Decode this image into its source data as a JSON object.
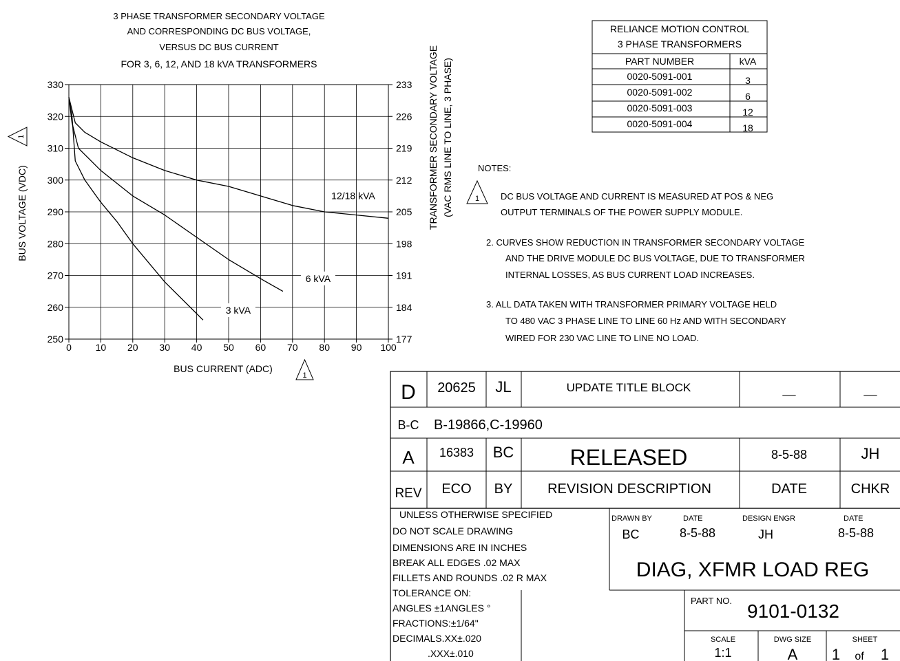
{
  "chart_data": {
    "type": "line",
    "title": [
      "3 PHASE TRANSFORMER SECONDARY VOLTAGE",
      "AND CORRESPONDING DC BUS VOLTAGE,",
      "VERSUS DC BUS CURRENT",
      "FOR 3, 6, 12, AND 18 kVA TRANSFORMERS"
    ],
    "xlabel": "BUS CURRENT (ADC)",
    "ylabel": "BUS VOLTAGE (VDC)",
    "y2label": [
      "TRANSFORMER SECONDARY VOLTAGE",
      "(VAC RMS LINE TO LINE, 3 PHASE)"
    ],
    "xlim": [
      0,
      100
    ],
    "ylim": [
      250,
      330
    ],
    "x_ticks": [
      "0",
      "10",
      "20",
      "30",
      "40",
      "50",
      "60",
      "70",
      "80",
      "90",
      "100"
    ],
    "y_ticks": [
      "250",
      "260",
      "270",
      "280",
      "290",
      "300",
      "310",
      "320",
      "330"
    ],
    "y2_ticks": [
      "177",
      "184",
      "191",
      "198",
      "205",
      "212",
      "219",
      "226",
      "233"
    ],
    "grid": true,
    "note_marker": "1",
    "series": [
      {
        "name": "3 kVA",
        "x": [
          0,
          1,
          2,
          5,
          10,
          15,
          20,
          30,
          40,
          42
        ],
        "y": [
          326,
          320,
          306,
          300,
          293,
          287,
          280,
          268,
          258,
          256
        ]
      },
      {
        "name": "6 kVA",
        "x": [
          0,
          1,
          3,
          5,
          10,
          15,
          20,
          30,
          40,
          50,
          60,
          67
        ],
        "y": [
          326,
          318,
          310,
          308,
          303,
          299,
          295,
          289,
          282,
          275,
          269,
          265
        ]
      },
      {
        "name": "12/18 kVA",
        "x": [
          0,
          2,
          5,
          10,
          20,
          30,
          40,
          50,
          60,
          70,
          80,
          90,
          100
        ],
        "y": [
          326,
          318,
          315,
          312,
          307,
          303,
          300,
          298,
          295,
          292,
          290,
          289,
          288
        ]
      }
    ]
  },
  "part_table": {
    "title_line1": "RELIANCE MOTION CONTROL",
    "title_line2": "3 PHASE TRANSFORMERS",
    "col_part": "PART NUMBER",
    "col_kva": "kVA",
    "rows": [
      {
        "part": "0020-5091-001",
        "kva": "3"
      },
      {
        "part": "0020-5091-002",
        "kva": "6"
      },
      {
        "part": "0020-5091-003",
        "kva": "12"
      },
      {
        "part": "0020-5091-004",
        "kva": "18"
      }
    ]
  },
  "notes": {
    "heading": "NOTES:",
    "note1_marker": "1",
    "note1": [
      "DC BUS VOLTAGE AND CURRENT IS MEASURED AT POS & NEG",
      "OUTPUT TERMINALS OF THE POWER SUPPLY MODULE."
    ],
    "note2": [
      "2. CURVES SHOW REDUCTION IN TRANSFORMER SECONDARY VOLTAGE",
      "AND THE DRIVE MODULE DC BUS VOLTAGE, DUE TO TRANSFORMER",
      "INTERNAL LOSSES, AS BUS CURRENT LOAD INCREASES."
    ],
    "note3": [
      "3. ALL DATA TAKEN WITH TRANSFORMER PRIMARY VOLTAGE HELD",
      "TO 480 VAC 3 PHASE LINE TO LINE 60 Hz AND WITH SECONDARY",
      "WIRED FOR 230 VAC LINE TO LINE NO LOAD."
    ]
  },
  "revisions": {
    "rows": [
      {
        "rev": "D",
        "eco": "20625",
        "by": "JL",
        "desc": "UPDATE TITLE BLOCK",
        "date": "__",
        "chkr": "__"
      },
      {
        "rev": "B-C",
        "eco": "B-19866,C-19960"
      },
      {
        "rev": "A",
        "eco": "16383",
        "by": "BC",
        "desc": "RELEASED",
        "date": "8-5-88",
        "chkr": "JH"
      }
    ],
    "header": {
      "rev": "REV",
      "eco": "ECO",
      "by": "BY",
      "desc": "REVISION DESCRIPTION",
      "date": "DATE",
      "chkr": "CHKR"
    }
  },
  "title_block": {
    "spec_lines": [
      "UNLESS OTHERWISE SPECIFIED",
      "DO NOT SCALE DRAWING",
      "DIMENSIONS ARE IN INCHES",
      "BREAK ALL EDGES .02 MAX",
      "FILLETS AND ROUNDS .02 R MAX",
      "TOLERANCE ON:",
      "ANGLES ±1ANGLES °",
      "FRACTIONS:±1/64\"",
      "DECIMALS.XX±.020",
      ".XXX±.010"
    ],
    "drawn_by_label": "DRAWN BY",
    "drawn_by": "BC",
    "date_label": "DATE",
    "drawn_date": "8-5-88",
    "design_engr_label": "DESIGN ENGR",
    "design_engr": "JH",
    "design_date_label": "DATE",
    "design_date": "8-5-88",
    "title": "DIAG, XFMR LOAD REG",
    "part_no_label": "PART NO.",
    "part_no": "9101-0132",
    "scale_label": "SCALE",
    "scale": "1:1",
    "dwg_size_label": "DWG SIZE",
    "dwg_size": "A",
    "sheet_label": "SHEET",
    "sheet": "1",
    "sheet_of": "of",
    "sheet_total": "1"
  }
}
